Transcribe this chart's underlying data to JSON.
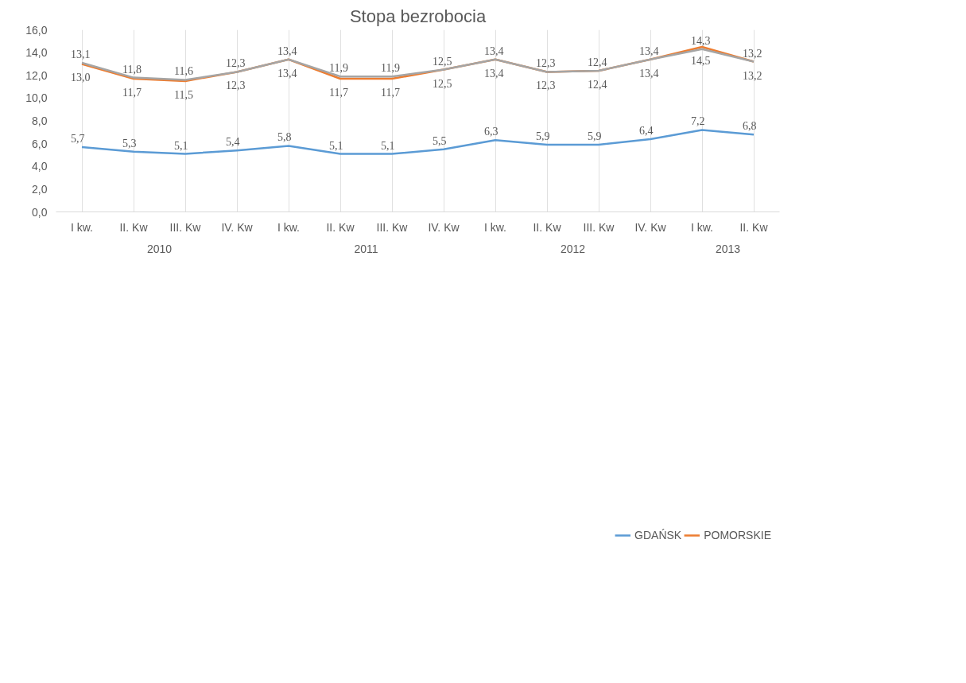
{
  "chart_data": {
    "type": "line",
    "title": "Stopa bezrobocia",
    "categories": [
      "I kw.",
      "II. Kw",
      "III. Kw",
      "IV. Kw",
      "I kw.",
      "II. Kw",
      "III. Kw",
      "IV. Kw",
      "I kw.",
      "II. Kw",
      "III. Kw",
      "IV. Kw",
      "I kw.",
      "II. Kw"
    ],
    "annotations": [
      "2010",
      "2011",
      "2012",
      "2013"
    ],
    "series": [
      {
        "name": "GDAŃSK",
        "color": "#5b9bd5",
        "values": [
          5.7,
          5.3,
          5.1,
          5.4,
          5.8,
          5.1,
          5.1,
          5.5,
          6.3,
          5.9,
          5.9,
          6.4,
          7.2,
          6.8
        ],
        "value_labels": [
          "5,7",
          "5,3",
          "5,1",
          "5,4",
          "5,8",
          "5,1",
          "5,1",
          "5,5",
          "6,3",
          "5,9",
          "5,9",
          "6,4",
          "7,2",
          "6,8"
        ]
      },
      {
        "name": "POMORSKIE",
        "color": "#ed7d31",
        "values": [
          13.0,
          11.7,
          11.5,
          12.3,
          13.4,
          11.7,
          11.7,
          12.5,
          13.4,
          12.3,
          12.4,
          13.4,
          14.5,
          13.2
        ],
        "value_labels": [
          "13,0",
          "11,7",
          "11,5",
          "12,3",
          "13,4",
          "11,7",
          "11,7",
          "12,5",
          "13,4",
          "12,3",
          "12,4",
          "13,4",
          "14,5",
          "13,2"
        ]
      },
      {
        "color": "#a5a5a5",
        "values": [
          13.1,
          11.8,
          11.6,
          12.3,
          13.4,
          11.9,
          11.9,
          12.5,
          13.4,
          12.3,
          12.4,
          13.4,
          14.3,
          13.2
        ],
        "value_labels": [
          "13,1",
          "11,8",
          "11,6",
          "12,3",
          "13,4",
          "11,9",
          "11,9",
          "12,5",
          "13,4",
          "12,3",
          "12,4",
          "13,4",
          "14,3",
          "13,2"
        ]
      }
    ],
    "ylim": [
      0,
      16
    ],
    "yticks": [
      {
        "value": 0,
        "label": "0,0"
      },
      {
        "value": 2,
        "label": "2,0"
      },
      {
        "value": 4,
        "label": "4,0"
      },
      {
        "value": 6,
        "label": "6,0"
      },
      {
        "value": 8,
        "label": "8,0"
      },
      {
        "value": 10,
        "label": "10,0"
      },
      {
        "value": 12,
        "label": "12,0"
      },
      {
        "value": 14,
        "label": "14,0"
      },
      {
        "value": 16,
        "label": "16,0"
      }
    ],
    "grid": "x",
    "legend": "bottom",
    "marker": "none",
    "line_style": "solid"
  }
}
